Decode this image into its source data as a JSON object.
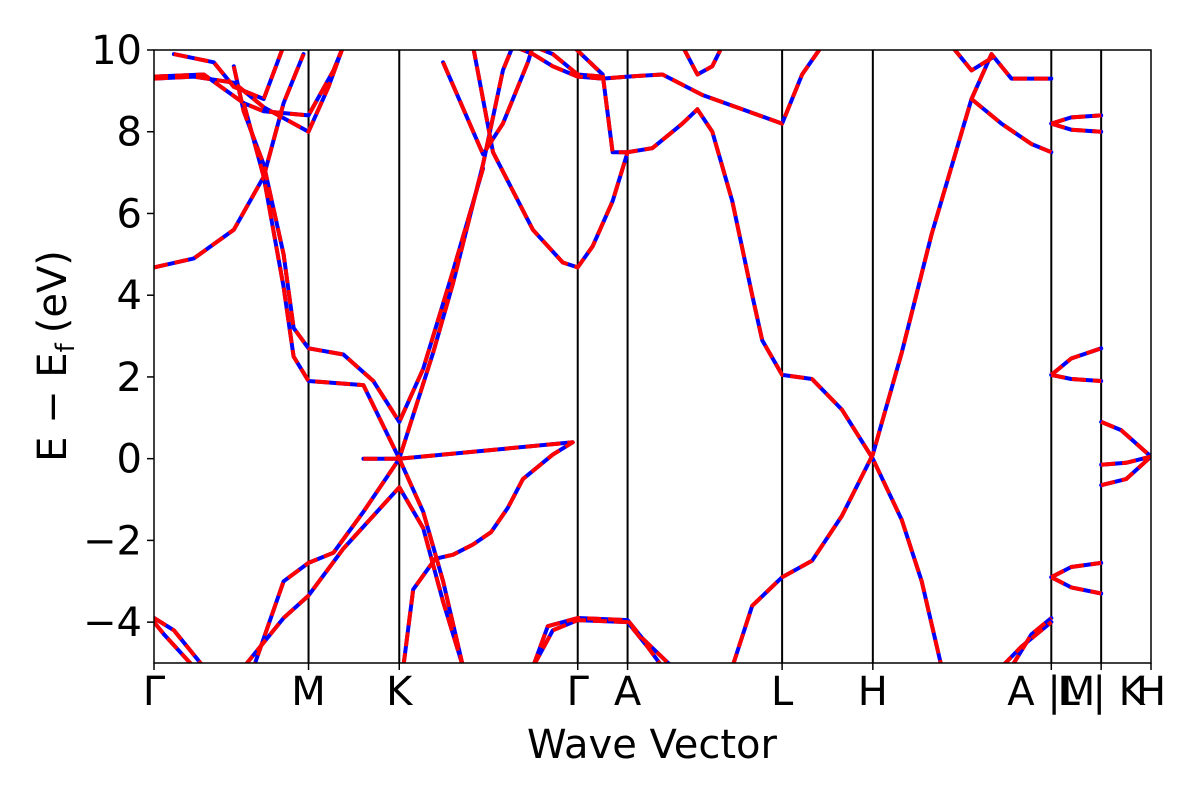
{
  "chart_data": {
    "type": "line",
    "xlabel": "Wave Vector",
    "ylabel_main": "E − E",
    "ylabel_sub": "f",
    "ylabel_unit": "(eV)",
    "ylim": [
      -5,
      10
    ],
    "xlim": [
      0,
      1
    ],
    "yticks": [
      {
        "value": 10,
        "label": "10"
      },
      {
        "value": 8,
        "label": "8"
      },
      {
        "value": 6,
        "label": "6"
      },
      {
        "value": 4,
        "label": "4"
      },
      {
        "value": 2,
        "label": "2"
      },
      {
        "value": 0,
        "label": "0"
      },
      {
        "value": -2,
        "label": "−2"
      },
      {
        "value": -4,
        "label": "−4"
      }
    ],
    "kpoints": [
      {
        "pos": 0.0,
        "label": "Γ"
      },
      {
        "pos": 0.155,
        "label": "M"
      },
      {
        "pos": 0.246,
        "label": "K"
      },
      {
        "pos": 0.425,
        "label": "Γ"
      },
      {
        "pos": 0.475,
        "label": "A"
      },
      {
        "pos": 0.63,
        "label": "L"
      },
      {
        "pos": 0.721,
        "label": "H"
      },
      {
        "pos": 0.9,
        "label": "A |M"
      },
      {
        "pos": 0.95,
        "label": "L | K"
      },
      {
        "pos": 1.0,
        "label": "H"
      }
    ],
    "colors": {
      "series_a": "#0000ff",
      "series_b": "#ff0000",
      "axes": "#000000"
    },
    "bands": [
      [
        [
          0,
          4.68
        ],
        [
          0.04,
          4.9
        ],
        [
          0.08,
          5.6
        ],
        [
          0.11,
          6.9
        ],
        [
          0.13,
          8.7
        ],
        [
          0.15,
          9.9
        ]
      ],
      [
        [
          0,
          9.3
        ],
        [
          0.04,
          9.35
        ],
        [
          0.08,
          9.2
        ],
        [
          0.11,
          8.6
        ],
        [
          0.155,
          8.0
        ],
        [
          0.175,
          9.1
        ],
        [
          0.19,
          10.1
        ]
      ],
      [
        [
          0,
          9.35
        ],
        [
          0.05,
          9.4
        ],
        [
          0.09,
          8.7
        ],
        [
          0.11,
          8.5
        ],
        [
          0.155,
          8.4
        ],
        [
          0.18,
          9.5
        ],
        [
          0.19,
          10.1
        ]
      ],
      [
        [
          0.02,
          9.9
        ],
        [
          0.06,
          9.7
        ],
        [
          0.08,
          9.1
        ],
        [
          0.11,
          8.8
        ],
        [
          0.13,
          10.1
        ]
      ],
      [
        [
          0.08,
          9.6
        ],
        [
          0.09,
          8.5
        ],
        [
          0.11,
          7.2
        ],
        [
          0.13,
          5.0
        ],
        [
          0.14,
          3.2
        ],
        [
          0.155,
          2.7
        ],
        [
          0.19,
          2.55
        ],
        [
          0.22,
          1.9
        ],
        [
          0.246,
          0.9
        ],
        [
          0.27,
          2.2
        ],
        [
          0.3,
          4.6
        ],
        [
          0.33,
          7.1
        ]
      ],
      [
        [
          0.09,
          8.7
        ],
        [
          0.11,
          6.9
        ],
        [
          0.13,
          4.2
        ],
        [
          0.14,
          2.5
        ],
        [
          0.155,
          1.9
        ],
        [
          0.21,
          1.8
        ],
        [
          0.246,
          0.0
        ],
        [
          0.27,
          -1.3
        ],
        [
          0.29,
          -3.0
        ],
        [
          0.31,
          -5.1
        ]
      ],
      [
        [
          0.25,
          -5.1
        ],
        [
          0.26,
          -3.2
        ],
        [
          0.282,
          -2.45
        ],
        [
          0.3,
          -2.35
        ],
        [
          0.32,
          -2.1
        ],
        [
          0.338,
          -1.8
        ],
        [
          0.355,
          -1.2
        ],
        [
          0.37,
          -0.5
        ],
        [
          0.4,
          0.1
        ],
        [
          0.42,
          0.4
        ],
        [
          0.246,
          -0.0
        ],
        [
          0.21,
          -1.3
        ],
        [
          0.18,
          -2.3
        ],
        [
          0.155,
          -2.55
        ],
        [
          0.13,
          -3.0
        ],
        [
          0.1,
          -5.1
        ]
      ],
      [
        [
          0.09,
          -5.1
        ],
        [
          0.13,
          -3.9
        ],
        [
          0.155,
          -3.35
        ],
        [
          0.19,
          -2.2
        ],
        [
          0.246,
          -0.7
        ],
        [
          0.27,
          -1.7
        ],
        [
          0.29,
          -3.5
        ],
        [
          0.31,
          -5.1
        ]
      ],
      [
        [
          0,
          -3.9
        ],
        [
          0.02,
          -4.2
        ],
        [
          0.05,
          -5.1
        ]
      ],
      [
        [
          0,
          -4.0
        ],
        [
          0.01,
          -4.3
        ],
        [
          0.04,
          -5.1
        ]
      ],
      [
        [
          0.21,
          -0.0
        ],
        [
          0.246,
          0.0
        ],
        [
          0.28,
          2.6
        ],
        [
          0.3,
          4.3
        ],
        [
          0.33,
          7.2
        ],
        [
          0.35,
          9.5
        ],
        [
          0.36,
          10.1
        ]
      ],
      [
        [
          0.29,
          9.7
        ],
        [
          0.33,
          7.45
        ],
        [
          0.35,
          8.2
        ],
        [
          0.375,
          9.7
        ],
        [
          0.38,
          10.1
        ]
      ],
      [
        [
          0.32,
          10.1
        ],
        [
          0.34,
          7.5
        ],
        [
          0.38,
          5.6
        ],
        [
          0.41,
          4.8
        ],
        [
          0.425,
          4.68
        ],
        [
          0.44,
          5.2
        ],
        [
          0.46,
          6.3
        ],
        [
          0.475,
          7.5
        ],
        [
          0.5,
          7.6
        ],
        [
          0.53,
          8.2
        ],
        [
          0.545,
          8.55
        ],
        [
          0.56,
          8.0
        ],
        [
          0.58,
          6.3
        ],
        [
          0.6,
          4.0
        ],
        [
          0.61,
          2.9
        ],
        [
          0.63,
          2.05
        ],
        [
          0.66,
          1.95
        ],
        [
          0.69,
          1.2
        ],
        [
          0.721,
          0.0
        ],
        [
          0.75,
          -1.5
        ],
        [
          0.77,
          -3.0
        ],
        [
          0.79,
          -5.1
        ]
      ],
      [
        [
          0.36,
          10.1
        ],
        [
          0.38,
          9.9
        ],
        [
          0.4,
          9.6
        ],
        [
          0.425,
          9.35
        ],
        [
          0.45,
          9.3
        ],
        [
          0.475,
          9.35
        ],
        [
          0.51,
          9.4
        ],
        [
          0.55,
          8.9
        ],
        [
          0.59,
          8.55
        ],
        [
          0.63,
          8.2
        ],
        [
          0.65,
          9.4
        ],
        [
          0.67,
          10.1
        ]
      ],
      [
        [
          0.38,
          10.1
        ],
        [
          0.4,
          9.9
        ],
        [
          0.425,
          9.4
        ],
        [
          0.45,
          9.35
        ]
      ],
      [
        [
          0.42,
          10.1
        ],
        [
          0.45,
          9.4
        ],
        [
          0.46,
          7.5
        ],
        [
          0.475,
          7.5
        ]
      ],
      [
        [
          0.53,
          10.1
        ],
        [
          0.545,
          9.4
        ],
        [
          0.56,
          9.6
        ],
        [
          0.57,
          10.1
        ]
      ],
      [
        [
          0.38,
          -5.1
        ],
        [
          0.395,
          -4.1
        ],
        [
          0.425,
          -3.9
        ],
        [
          0.475,
          -3.95
        ],
        [
          0.49,
          -4.4
        ],
        [
          0.52,
          -5.1
        ]
      ],
      [
        [
          0.38,
          -5.1
        ],
        [
          0.4,
          -4.2
        ],
        [
          0.425,
          -3.95
        ],
        [
          0.475,
          -4.0
        ],
        [
          0.495,
          -4.6
        ],
        [
          0.51,
          -5.1
        ]
      ],
      [
        [
          0.58,
          -5.1
        ],
        [
          0.6,
          -3.6
        ],
        [
          0.63,
          -2.9
        ],
        [
          0.66,
          -2.5
        ],
        [
          0.69,
          -1.4
        ],
        [
          0.721,
          0.1
        ],
        [
          0.75,
          2.6
        ],
        [
          0.78,
          5.5
        ],
        [
          0.82,
          8.8
        ],
        [
          0.84,
          9.9
        ],
        [
          0.86,
          9.3
        ],
        [
          0.9,
          9.3
        ]
      ],
      [
        [
          0.82,
          8.8
        ],
        [
          0.85,
          8.2
        ],
        [
          0.88,
          7.7
        ],
        [
          0.9,
          7.5
        ]
      ],
      [
        [
          0.8,
          10.1
        ],
        [
          0.82,
          9.5
        ],
        [
          0.84,
          9.8
        ]
      ],
      [
        [
          0.86,
          -5.1
        ],
        [
          0.88,
          -4.3
        ],
        [
          0.9,
          -3.9
        ]
      ],
      [
        [
          0.85,
          -5.1
        ],
        [
          0.87,
          -4.6
        ],
        [
          0.9,
          -4.0
        ]
      ],
      [
        [
          0.9,
          8.2
        ],
        [
          0.92,
          8.35
        ],
        [
          0.95,
          8.4
        ]
      ],
      [
        [
          0.9,
          8.2
        ],
        [
          0.92,
          8.05
        ],
        [
          0.95,
          8.0
        ]
      ],
      [
        [
          0.9,
          2.05
        ],
        [
          0.92,
          2.45
        ],
        [
          0.95,
          2.7
        ]
      ],
      [
        [
          0.9,
          2.05
        ],
        [
          0.92,
          1.95
        ],
        [
          0.95,
          1.9
        ]
      ],
      [
        [
          0.9,
          -2.9
        ],
        [
          0.92,
          -2.65
        ],
        [
          0.95,
          -2.55
        ]
      ],
      [
        [
          0.9,
          -2.9
        ],
        [
          0.92,
          -3.15
        ],
        [
          0.95,
          -3.3
        ]
      ],
      [
        [
          0.95,
          0.9
        ],
        [
          0.97,
          0.7
        ],
        [
          1.0,
          0.05
        ]
      ],
      [
        [
          0.95,
          -0.15
        ],
        [
          0.975,
          -0.1
        ],
        [
          1.0,
          0.05
        ]
      ],
      [
        [
          0.95,
          -0.65
        ],
        [
          0.975,
          -0.5
        ],
        [
          1.0,
          0.05
        ]
      ]
    ]
  }
}
